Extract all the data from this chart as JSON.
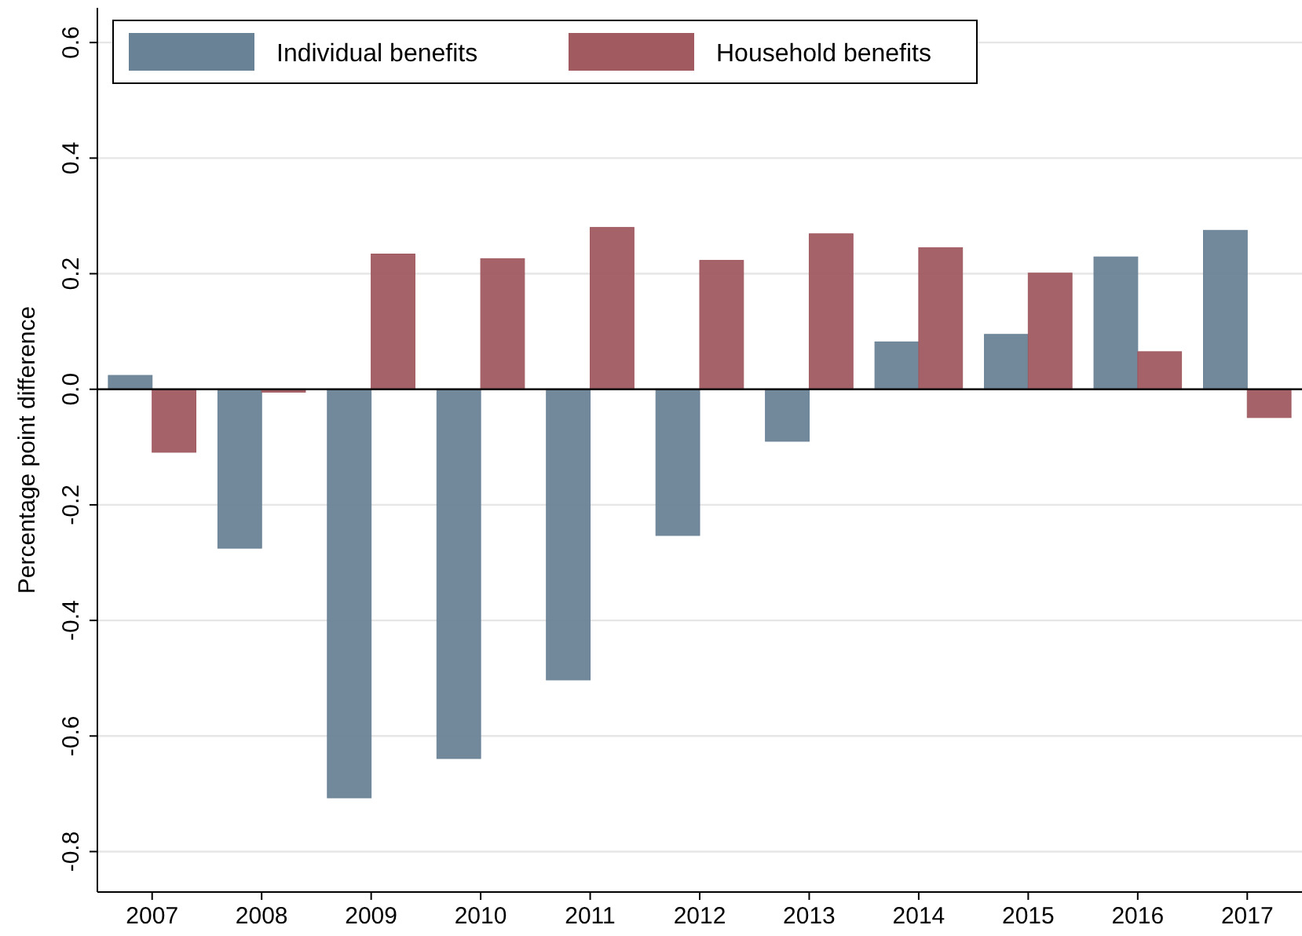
{
  "chart_data": {
    "type": "bar",
    "ylabel": "Percentage point difference",
    "categories": [
      "2007",
      "2008",
      "2009",
      "2010",
      "2011",
      "2012",
      "2013",
      "2014",
      "2015",
      "2016",
      "2017"
    ],
    "series": [
      {
        "name": "Individual benefits",
        "color": "#6a8296",
        "values": [
          0.024,
          -0.275,
          -0.707,
          -0.639,
          -0.503,
          -0.253,
          -0.09,
          0.082,
          0.095,
          0.229,
          0.275
        ]
      },
      {
        "name": "Household benefits",
        "color": "#a05a60",
        "values": [
          -0.109,
          -0.005,
          0.234,
          0.226,
          0.28,
          0.223,
          0.269,
          0.245,
          0.201,
          0.065,
          -0.049
        ]
      }
    ],
    "ylim": [
      -0.87,
      0.66
    ],
    "yticks": [
      -0.8,
      -0.6,
      -0.4,
      -0.2,
      {
        "value": 0,
        "label": "0.0"
      },
      0.2,
      0.4,
      0.6
    ],
    "ref_lines": [
      {
        "axis": "y",
        "value": 0,
        "color": "#000000"
      }
    ],
    "grid": "y",
    "legend": "top left"
  }
}
